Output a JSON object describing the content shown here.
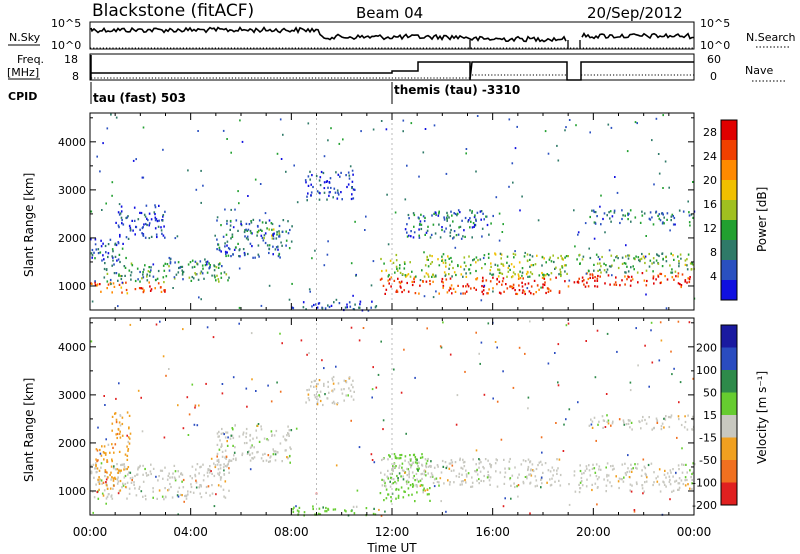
{
  "header": {
    "station": "Blackstone (fitACF)",
    "beam": "Beam 04",
    "date": "20/Sep/2012"
  },
  "params": {
    "nsky_label": "N.Sky",
    "nsky_ticks": [
      "10^5",
      "10^0"
    ],
    "nsearch_label": "N.Search",
    "freq_label": "Freq.",
    "freq_unit": "[MHz]",
    "freq_ticks": [
      "18",
      "8"
    ],
    "nave_label": "Nave",
    "nave_ticks": [
      "60",
      "0"
    ],
    "cpid_label": "CPID",
    "cpid_modes": [
      "tau (fast) 503",
      "themis (tau) -3310"
    ]
  },
  "x_ticks": [
    "00:00",
    "04:00",
    "08:00",
    "12:00",
    "16:00",
    "20:00",
    "00:00"
  ],
  "xlabel": "Time UT",
  "colors": {
    "power": [
      "#1010e0",
      "#2a50c0",
      "#2f7a68",
      "#22a030",
      "#a0c020",
      "#f0c000",
      "#ff8a00",
      "#f04000",
      "#e00000"
    ],
    "velocity": [
      "#1a1aa0",
      "#2a4cc0",
      "#2e8a4a",
      "#66cc30",
      "#c8c8c0",
      "#f0a020",
      "#f07020",
      "#e02020"
    ]
  },
  "chart_data": [
    {
      "type": "heatmap",
      "name": "Power",
      "ylabel": "Slant Range [km]",
      "yticks": [
        "1000",
        "2000",
        "3000",
        "4000"
      ],
      "ylim": [
        500,
        4600
      ],
      "xlim_hours": [
        0,
        24
      ],
      "colorbar_label": "Power [dB]",
      "colorbar_ticks": [
        "4",
        "8",
        "12",
        "16",
        "20",
        "24",
        "28"
      ],
      "colorbar_range": [
        0,
        30
      ],
      "bands": [
        {
          "t0": 0.0,
          "t1": 3.0,
          "r0": 850,
          "r1": 1100,
          "level": 24
        },
        {
          "t0": 0.5,
          "t1": 5.5,
          "r0": 1100,
          "r1": 1500,
          "level": 10
        },
        {
          "t0": 0.0,
          "t1": 1.5,
          "r0": 1500,
          "r1": 2000,
          "level": 6
        },
        {
          "t0": 1.0,
          "t1": 3.0,
          "r0": 2000,
          "r1": 2700,
          "level": 4
        },
        {
          "t0": 3.0,
          "t1": 5.0,
          "r0": 1400,
          "r1": 1600,
          "level": 8
        },
        {
          "t0": 5.0,
          "t1": 8.0,
          "r0": 1600,
          "r1": 2400,
          "level": 7
        },
        {
          "t0": 6.5,
          "t1": 7.5,
          "r0": 2000,
          "r1": 2200,
          "level": 14
        },
        {
          "t0": 8.5,
          "t1": 10.5,
          "r0": 2800,
          "r1": 3400,
          "level": 5
        },
        {
          "t0": 11.5,
          "t1": 19.0,
          "r0": 850,
          "r1": 1200,
          "level": 26
        },
        {
          "t0": 11.5,
          "t1": 19.0,
          "r0": 1200,
          "r1": 1700,
          "level": 14
        },
        {
          "t0": 12.5,
          "t1": 16.0,
          "r0": 2000,
          "r1": 2600,
          "level": 7
        },
        {
          "t0": 19.2,
          "t1": 24.0,
          "r0": 1000,
          "r1": 1300,
          "level": 26
        },
        {
          "t0": 19.2,
          "t1": 24.0,
          "r0": 1300,
          "r1": 1700,
          "level": 12
        },
        {
          "t0": 19.8,
          "t1": 24.0,
          "r0": 2300,
          "r1": 2600,
          "level": 8
        },
        {
          "t0": 8.0,
          "t1": 11.5,
          "r0": 500,
          "r1": 700,
          "level": 4
        }
      ]
    },
    {
      "type": "heatmap",
      "name": "Velocity",
      "ylabel": "Slant Range [km]",
      "yticks": [
        "1000",
        "2000",
        "3000",
        "4000"
      ],
      "ylim": [
        500,
        4600
      ],
      "xlim_hours": [
        0,
        24
      ],
      "colorbar_label": "Velocity [m s⁻¹]",
      "colorbar_ticks": [
        "200",
        "100",
        "50",
        "15",
        "-15",
        "-50",
        "-100",
        "-200"
      ],
      "bands": [
        {
          "t0": 0.0,
          "t1": 5.5,
          "r0": 850,
          "r1": 1600,
          "value": 0
        },
        {
          "t0": 0.2,
          "t1": 1.5,
          "r0": 1000,
          "r1": 2000,
          "value": -50
        },
        {
          "t0": 0.8,
          "t1": 1.6,
          "r0": 2000,
          "r1": 2700,
          "value": -50
        },
        {
          "t0": 5.0,
          "t1": 8.0,
          "r0": 1600,
          "r1": 2400,
          "value": 0
        },
        {
          "t0": 8.5,
          "t1": 10.5,
          "r0": 2800,
          "r1": 3400,
          "value": 0
        },
        {
          "t0": 11.5,
          "t1": 13.5,
          "r0": 800,
          "r1": 1800,
          "value": 30
        },
        {
          "t0": 11.5,
          "t1": 19.0,
          "r0": 1100,
          "r1": 1700,
          "value": 0
        },
        {
          "t0": 19.2,
          "t1": 24.0,
          "r0": 1000,
          "r1": 1600,
          "value": 0
        },
        {
          "t0": 19.8,
          "t1": 24.0,
          "r0": 2300,
          "r1": 2600,
          "value": 0
        },
        {
          "t0": 8.0,
          "t1": 11.5,
          "r0": 500,
          "r1": 700,
          "value": 30
        }
      ]
    }
  ]
}
